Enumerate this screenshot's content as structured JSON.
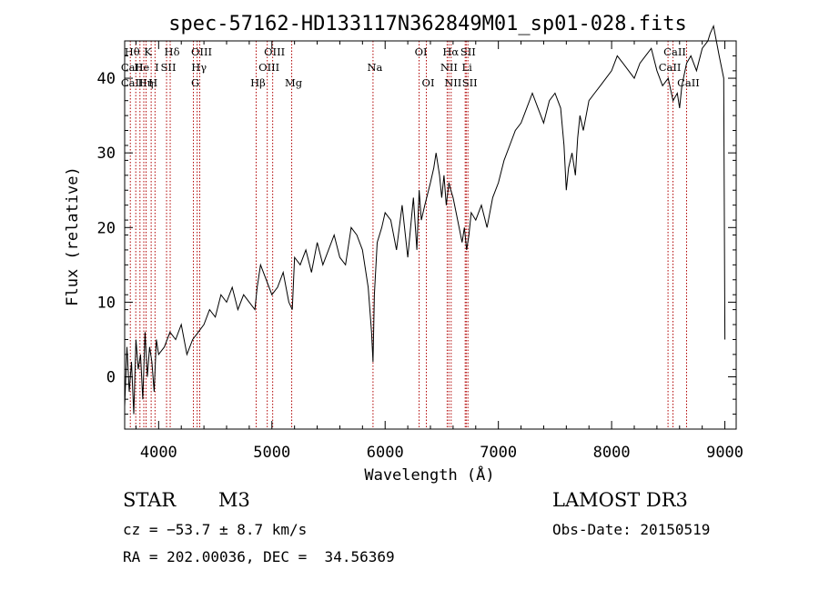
{
  "chart_data": {
    "type": "line",
    "title": "spec-57162-HD133117N362849M01_sp01-028.fits",
    "xlabel": "Wavelength (Å)",
    "ylabel": "Flux (relative)",
    "xlim": [
      3700,
      9100
    ],
    "ylim": [
      -7,
      45
    ],
    "x_ticks": [
      4000,
      5000,
      6000,
      7000,
      8000,
      9000
    ],
    "y_ticks": [
      0,
      10,
      20,
      30,
      40
    ],
    "series": [
      {
        "x": [
          3700,
          3720,
          3740,
          3760,
          3780,
          3800,
          3820,
          3840,
          3860,
          3880,
          3900,
          3920,
          3940,
          3960,
          3980,
          4000,
          4050,
          4100,
          4150,
          4200,
          4250,
          4300,
          4350,
          4400,
          4450,
          4500,
          4550,
          4600,
          4650,
          4700,
          4750,
          4800,
          4850,
          4870,
          4900,
          4950,
          5000,
          5050,
          5100,
          5150,
          5180,
          5200,
          5250,
          5300,
          5350,
          5400,
          5450,
          5500,
          5550,
          5600,
          5650,
          5700,
          5750,
          5800,
          5850,
          5880,
          5893,
          5905,
          5930,
          5970,
          6000,
          6050,
          6100,
          6150,
          6200,
          6250,
          6280,
          6300,
          6320,
          6350,
          6400,
          6430,
          6450,
          6480,
          6500,
          6520,
          6540,
          6563,
          6580,
          6600,
          6640,
          6680,
          6700,
          6720,
          6740,
          6760,
          6800,
          6850,
          6900,
          6950,
          7000,
          7050,
          7100,
          7150,
          7200,
          7250,
          7300,
          7350,
          7400,
          7450,
          7500,
          7550,
          7580,
          7600,
          7620,
          7650,
          7680,
          7700,
          7720,
          7750,
          7800,
          7850,
          7900,
          7950,
          8000,
          8050,
          8100,
          8150,
          8200,
          8250,
          8300,
          8350,
          8400,
          8450,
          8500,
          8542,
          8580,
          8600,
          8620,
          8662,
          8700,
          8750,
          8800,
          8850,
          8870,
          8900,
          8950,
          8990,
          9000
        ],
        "y": [
          -4,
          4,
          -2,
          2,
          -5,
          5,
          1,
          3,
          -3,
          6,
          0,
          4,
          2,
          -2,
          5,
          3,
          4,
          6,
          5,
          7,
          3,
          5,
          6,
          7,
          9,
          8,
          11,
          10,
          12,
          9,
          11,
          10,
          9,
          12,
          15,
          13,
          11,
          12,
          14,
          10,
          9,
          16,
          15,
          17,
          14,
          18,
          15,
          17,
          19,
          16,
          15,
          20,
          19,
          17,
          12,
          6,
          2,
          11,
          18,
          20,
          22,
          21,
          17,
          23,
          16,
          24,
          17,
          25,
          21,
          23,
          26,
          28,
          30,
          27,
          24,
          27,
          23,
          26,
          25,
          24,
          21,
          18,
          20,
          17,
          19,
          22,
          21,
          23,
          20,
          24,
          26,
          29,
          31,
          33,
          34,
          36,
          38,
          36,
          34,
          37,
          38,
          36,
          31,
          25,
          28,
          30,
          27,
          32,
          35,
          33,
          37,
          38,
          39,
          40,
          41,
          43,
          42,
          41,
          40,
          42,
          43,
          44,
          41,
          39,
          40,
          37,
          38,
          36,
          39,
          42,
          43,
          41,
          44,
          45,
          46,
          47,
          43,
          40,
          5
        ]
      }
    ],
    "line_markers": [
      {
        "wl": 3750,
        "labels": [
          {
            "text": "Hθ",
            "row": 0
          },
          {
            "text": "CaII",
            "row": 1
          },
          {
            "text": "CaII",
            "row": 2
          }
        ]
      },
      {
        "wl": 3798,
        "labels": []
      },
      {
        "wl": 3835,
        "labels": [
          {
            "text": "He",
            "row": 1
          }
        ]
      },
      {
        "wl": 3869,
        "labels": [
          {
            "text": "Hη",
            "row": 2
          }
        ]
      },
      {
        "wl": 3889,
        "labels": [
          {
            "text": "K",
            "row": 0
          }
        ]
      },
      {
        "wl": 3934,
        "labels": [
          {
            "text": "H",
            "row": 2
          }
        ]
      },
      {
        "wl": 3968,
        "labels": [
          {
            "text": "I",
            "row": 1
          }
        ]
      },
      {
        "wl": 4070,
        "labels": [
          {
            "text": "SII",
            "row": 1
          }
        ]
      },
      {
        "wl": 4102,
        "labels": [
          {
            "text": "Hδ",
            "row": 0
          }
        ]
      },
      {
        "wl": 4307,
        "labels": [
          {
            "text": "G",
            "row": 2
          }
        ]
      },
      {
        "wl": 4340,
        "labels": [
          {
            "text": "Hγ",
            "row": 1
          }
        ]
      },
      {
        "wl": 4363,
        "labels": [
          {
            "text": "OIII",
            "row": 0
          }
        ]
      },
      {
        "wl": 4861,
        "labels": [
          {
            "text": "Hβ",
            "row": 2
          }
        ]
      },
      {
        "wl": 4959,
        "labels": [
          {
            "text": "OIII",
            "row": 1
          }
        ]
      },
      {
        "wl": 5007,
        "labels": [
          {
            "text": "OIII",
            "row": 0
          }
        ]
      },
      {
        "wl": 5175,
        "labels": [
          {
            "text": "Mg",
            "row": 2
          }
        ]
      },
      {
        "wl": 5893,
        "labels": [
          {
            "text": "Na",
            "row": 1
          }
        ]
      },
      {
        "wl": 6300,
        "labels": [
          {
            "text": "OI",
            "row": 0
          }
        ]
      },
      {
        "wl": 6364,
        "labels": [
          {
            "text": "OI",
            "row": 2
          }
        ]
      },
      {
        "wl": 6548,
        "labels": [
          {
            "text": "NII",
            "row": 1
          }
        ]
      },
      {
        "wl": 6563,
        "labels": [
          {
            "text": "Hα",
            "row": 0
          }
        ]
      },
      {
        "wl": 6583,
        "labels": [
          {
            "text": "NII",
            "row": 2
          }
        ]
      },
      {
        "wl": 6707,
        "labels": [
          {
            "text": "Li",
            "row": 1
          }
        ]
      },
      {
        "wl": 6716,
        "labels": [
          {
            "text": "SII",
            "row": 0
          }
        ]
      },
      {
        "wl": 6731,
        "labels": [
          {
            "text": "SII",
            "row": 2
          }
        ]
      },
      {
        "wl": 8498,
        "labels": [
          {
            "text": "CaII",
            "row": 1
          }
        ]
      },
      {
        "wl": 8542,
        "labels": [
          {
            "text": "CaII",
            "row": 0
          }
        ]
      },
      {
        "wl": 8662,
        "labels": [
          {
            "text": "CaII",
            "row": 2
          }
        ]
      }
    ]
  },
  "info": {
    "object": "STAR",
    "subclass": "M3",
    "survey": "LAMOST DR3",
    "cz": "cz = −53.7 ± 8.7 km/s",
    "obsdate": "Obs-Date: 20150519",
    "radec": "RA = 202.00036, DEC =  34.56369"
  }
}
